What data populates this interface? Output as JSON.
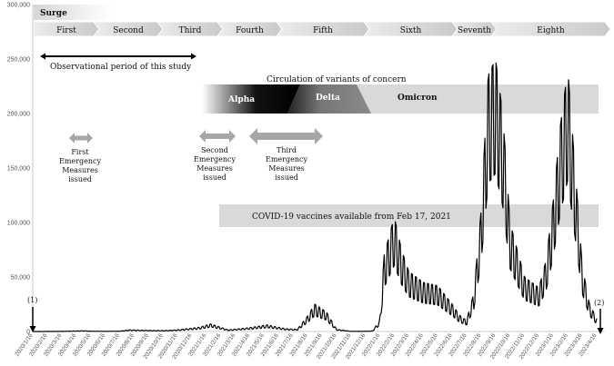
{
  "chart_data": {
    "type": "line",
    "ylim": [
      0,
      300000
    ],
    "yticks": [
      "0",
      "50,000",
      "100,000",
      "150,000",
      "200,000",
      "250,000",
      "300,000"
    ],
    "ytick_values": [
      0,
      50000,
      100000,
      150000,
      200000,
      250000,
      300000
    ],
    "xticks": [
      "2020/1/16",
      "2020/2/16",
      "2020/3/16",
      "2020/4/16",
      "2020/5/16",
      "2020/6/16",
      "2020/7/16",
      "2020/8/16",
      "2020/9/16",
      "2020/10/16",
      "2020/11/16",
      "2020/12/16",
      "2021/1/16",
      "2021/2/16",
      "2021/3/16",
      "2021/4/16",
      "2021/5/16",
      "2021/6/16",
      "2021/7/16",
      "2021/8/16",
      "2021/9/16",
      "2021/10/16",
      "2021/11/16",
      "2021/12/16",
      "2022/1/16",
      "2022/2/16",
      "2022/3/16",
      "2022/4/16",
      "2022/5/16",
      "2022/6/16",
      "2022/7/16",
      "2022/8/16",
      "2022/9/16",
      "2022/10/16",
      "2022/11/16",
      "2022/12/16",
      "2023/1/16",
      "2023/2/16",
      "2023/3/16",
      "2023/4/16"
    ],
    "series": [
      {
        "name": "Daily new cases",
        "x_month_index": [
          0,
          2,
          3,
          3.5,
          4,
          5,
          6,
          6.7,
          7.5,
          9,
          10,
          11,
          11.6,
          12.3,
          13.5,
          15,
          16.2,
          17.5,
          18.3,
          19,
          19.5,
          20.3,
          21,
          22,
          22.5,
          23,
          23.5,
          24,
          24.3,
          25,
          25.5,
          26,
          27,
          28,
          29,
          29.5,
          30,
          30.5,
          31,
          31.5,
          32,
          32.5,
          33,
          34,
          35,
          35.5,
          36,
          36.5,
          37,
          37.5,
          38,
          38.5,
          39,
          39.5,
          40
        ],
        "values": [
          0,
          100,
          500,
          700,
          300,
          200,
          300,
          1500,
          1200,
          800,
          1500,
          3000,
          4000,
          7000,
          1500,
          3500,
          6000,
          2500,
          2000,
          14000,
          25000,
          18000,
          2000,
          200,
          100,
          200,
          500,
          10000,
          70000,
          105000,
          75000,
          55000,
          45000,
          42000,
          25000,
          15000,
          10000,
          35000,
          110000,
          235000,
          250000,
          200000,
          100000,
          50000,
          40000,
          65000,
          120000,
          190000,
          240000,
          150000,
          60000,
          25000,
          12000,
          8000,
          10000
        ]
      }
    ],
    "surges": [
      "First",
      "Second",
      "Third",
      "Fourth",
      "Fifth",
      "Sixth",
      "Seventh",
      "Eighth"
    ],
    "surge_title": "Surge",
    "annotations": {
      "study_period": "Observational period of this study",
      "variants_title": "Circulation of variants of concern",
      "variants": [
        "Alpha",
        "Delta",
        "Omicron"
      ],
      "emergency1": [
        "First",
        "Emergency",
        "Measures",
        "issued"
      ],
      "emergency2": [
        "Second",
        "Emergency",
        "Measures",
        "issued"
      ],
      "emergency3": [
        "Third",
        "Emergency",
        "Measures",
        "issued"
      ],
      "vaccines": "COVID-19 vaccines available from Feb 17, 2021",
      "marker1": "(1)",
      "marker2": "(2)"
    }
  }
}
